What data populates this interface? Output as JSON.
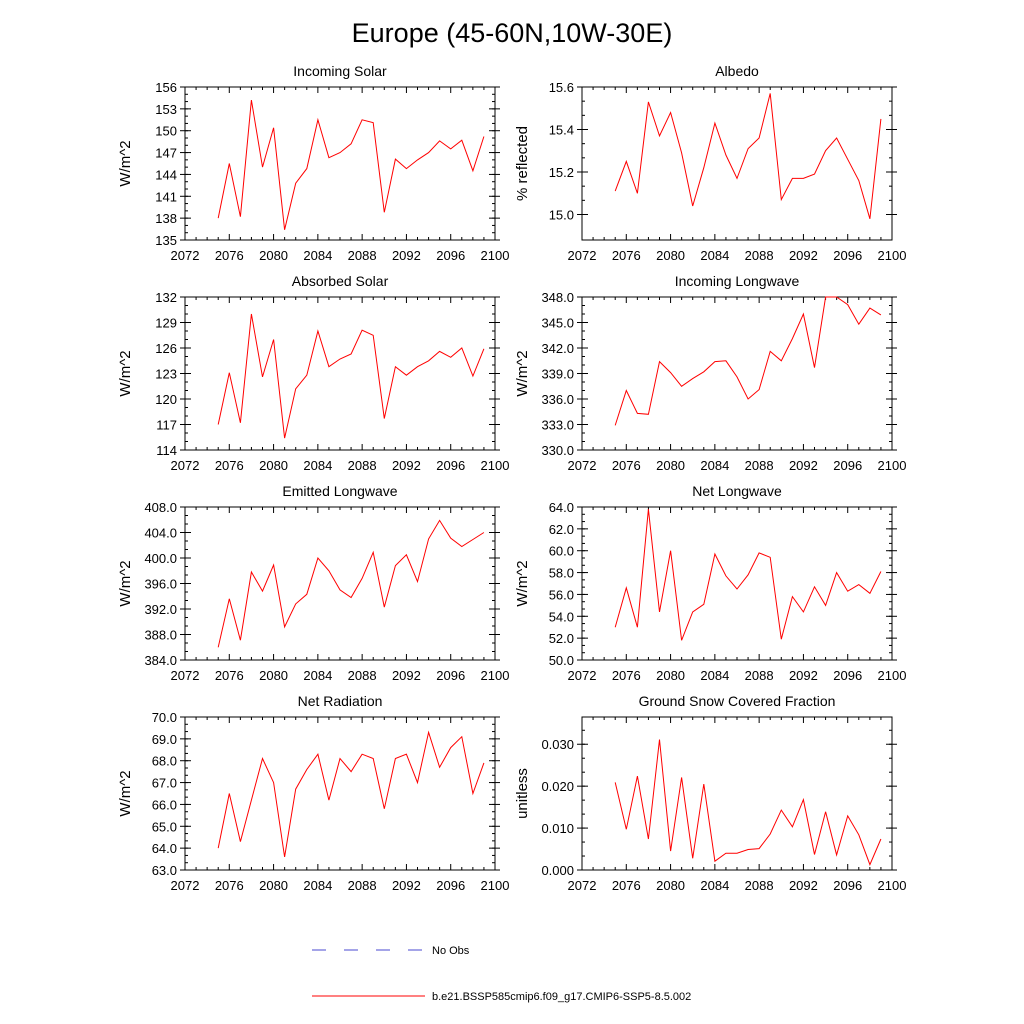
{
  "page_title": "Europe (45-60N,10W-30E)",
  "colors": {
    "series": "#ff0000",
    "obs": "#4a4ad0",
    "axis": "#000000",
    "background": "#ffffff"
  },
  "legend": [
    {
      "label": "No Obs",
      "style": "dashed",
      "color": "#4a4ad0"
    },
    {
      "label": "b.e21.BSSP585cmip6.f09_g17.CMIP6-SSP5-8.5.002",
      "style": "solid",
      "color": "#ff0000"
    }
  ],
  "chart_data": [
    {
      "type": "line",
      "title": "Incoming Solar",
      "ylabel": "W/m^2",
      "xlabel": "",
      "xlim": [
        2072,
        2100
      ],
      "ylim": [
        135,
        156
      ],
      "xticks": [
        "2072",
        "2076",
        "2080",
        "2084",
        "2088",
        "2092",
        "2096",
        "2100"
      ],
      "yticks": [
        "135",
        "138",
        "141",
        "144",
        "147",
        "150",
        "153",
        "156"
      ],
      "x": [
        2075,
        2076,
        2077,
        2078,
        2079,
        2080,
        2081,
        2082,
        2083,
        2084,
        2085,
        2086,
        2087,
        2088,
        2089,
        2090,
        2091,
        2092,
        2093,
        2094,
        2095,
        2096,
        2097,
        2098,
        2099
      ],
      "series": [
        {
          "values": [
            138.0,
            145.5,
            138.2,
            154.2,
            145.0,
            150.4,
            136.4,
            142.8,
            144.8,
            151.5,
            146.3,
            147.0,
            148.2,
            151.5,
            151.1,
            138.8,
            146.1,
            144.8,
            146.0,
            147.0,
            148.6,
            147.5,
            148.7,
            144.5,
            149.2
          ]
        }
      ]
    },
    {
      "type": "line",
      "title": "Albedo",
      "ylabel": "% reflected",
      "xlabel": "",
      "xlim": [
        2072,
        2100
      ],
      "ylim": [
        14.88,
        15.6
      ],
      "xticks": [
        "2072",
        "2076",
        "2080",
        "2084",
        "2088",
        "2092",
        "2096",
        "2100"
      ],
      "yticks": [
        "15.0",
        "15.2",
        "15.4",
        "15.6"
      ],
      "x": [
        2075,
        2076,
        2077,
        2078,
        2079,
        2080,
        2081,
        2082,
        2083,
        2084,
        2085,
        2086,
        2087,
        2088,
        2089,
        2090,
        2091,
        2092,
        2093,
        2094,
        2095,
        2096,
        2097,
        2098,
        2099
      ],
      "series": [
        {
          "values": [
            15.11,
            15.25,
            15.1,
            15.53,
            15.37,
            15.48,
            15.29,
            15.04,
            15.22,
            15.43,
            15.28,
            15.17,
            15.31,
            15.36,
            15.57,
            15.07,
            15.17,
            15.17,
            15.19,
            15.3,
            15.36,
            15.26,
            15.16,
            14.98,
            15.45
          ]
        }
      ]
    },
    {
      "type": "line",
      "title": "Absorbed Solar",
      "ylabel": "W/m^2",
      "xlabel": "",
      "xlim": [
        2072,
        2100
      ],
      "ylim": [
        114,
        132
      ],
      "xticks": [
        "2072",
        "2076",
        "2080",
        "2084",
        "2088",
        "2092",
        "2096",
        "2100"
      ],
      "yticks": [
        "114",
        "117",
        "120",
        "123",
        "126",
        "129",
        "132"
      ],
      "x": [
        2075,
        2076,
        2077,
        2078,
        2079,
        2080,
        2081,
        2082,
        2083,
        2084,
        2085,
        2086,
        2087,
        2088,
        2089,
        2090,
        2091,
        2092,
        2093,
        2094,
        2095,
        2096,
        2097,
        2098,
        2099
      ],
      "series": [
        {
          "values": [
            117.0,
            123.1,
            117.2,
            130.0,
            122.6,
            127.0,
            115.4,
            121.2,
            122.8,
            128.0,
            123.8,
            124.7,
            125.3,
            128.1,
            127.5,
            117.7,
            123.8,
            122.8,
            123.8,
            124.5,
            125.6,
            124.9,
            126.0,
            122.7,
            125.9
          ]
        }
      ]
    },
    {
      "type": "line",
      "title": "Incoming Longwave",
      "ylabel": "W/m^2",
      "xlabel": "",
      "xlim": [
        2072,
        2100
      ],
      "ylim": [
        330,
        348
      ],
      "xticks": [
        "2072",
        "2076",
        "2080",
        "2084",
        "2088",
        "2092",
        "2096",
        "2100"
      ],
      "yticks": [
        "330.0",
        "333.0",
        "336.0",
        "339.0",
        "342.0",
        "345.0",
        "348.0"
      ],
      "x": [
        2075,
        2076,
        2077,
        2078,
        2079,
        2080,
        2081,
        2082,
        2083,
        2084,
        2085,
        2086,
        2087,
        2088,
        2089,
        2090,
        2091,
        2092,
        2093,
        2094,
        2095,
        2096,
        2097,
        2098,
        2099
      ],
      "series": [
        {
          "values": [
            332.9,
            337.0,
            334.3,
            334.2,
            340.4,
            339.1,
            337.5,
            338.4,
            339.2,
            340.4,
            340.5,
            338.6,
            336.0,
            337.1,
            341.6,
            340.5,
            343.1,
            346.0,
            339.7,
            348.0,
            348.0,
            347.1,
            344.8,
            346.7,
            345.9
          ]
        }
      ]
    },
    {
      "type": "line",
      "title": "Emitted Longwave",
      "ylabel": "W/m^2",
      "xlabel": "",
      "xlim": [
        2072,
        2100
      ],
      "ylim": [
        384,
        408
      ],
      "xticks": [
        "2072",
        "2076",
        "2080",
        "2084",
        "2088",
        "2092",
        "2096",
        "2100"
      ],
      "yticks": [
        "384.0",
        "388.0",
        "392.0",
        "396.0",
        "400.0",
        "404.0",
        "408.0"
      ],
      "x": [
        2075,
        2076,
        2077,
        2078,
        2079,
        2080,
        2081,
        2082,
        2083,
        2084,
        2085,
        2086,
        2087,
        2088,
        2089,
        2090,
        2091,
        2092,
        2093,
        2094,
        2095,
        2096,
        2097,
        2098,
        2099
      ],
      "series": [
        {
          "values": [
            386.0,
            393.6,
            387.1,
            397.8,
            394.8,
            398.9,
            389.2,
            392.8,
            394.3,
            400.0,
            398.0,
            395.0,
            393.8,
            396.8,
            400.9,
            392.3,
            398.8,
            400.5,
            396.3,
            403.0,
            405.9,
            403.1,
            401.8,
            402.9,
            404.0
          ]
        }
      ]
    },
    {
      "type": "line",
      "title": "Net Longwave",
      "ylabel": "W/m^2",
      "xlabel": "",
      "xlim": [
        2072,
        2100
      ],
      "ylim": [
        50,
        64
      ],
      "xticks": [
        "2072",
        "2076",
        "2080",
        "2084",
        "2088",
        "2092",
        "2096",
        "2100"
      ],
      "yticks": [
        "50.0",
        "52.0",
        "54.0",
        "56.0",
        "58.0",
        "60.0",
        "62.0",
        "64.0"
      ],
      "x": [
        2075,
        2076,
        2077,
        2078,
        2079,
        2080,
        2081,
        2082,
        2083,
        2084,
        2085,
        2086,
        2087,
        2088,
        2089,
        2090,
        2091,
        2092,
        2093,
        2094,
        2095,
        2096,
        2097,
        2098,
        2099
      ],
      "series": [
        {
          "values": [
            53.0,
            56.6,
            53.0,
            63.8,
            54.4,
            60.0,
            51.8,
            54.4,
            55.1,
            59.7,
            57.7,
            56.5,
            57.8,
            59.8,
            59.4,
            51.9,
            55.8,
            54.4,
            56.7,
            55.0,
            58.0,
            56.3,
            56.9,
            56.1,
            58.1
          ]
        }
      ]
    },
    {
      "type": "line",
      "title": "Net Radiation",
      "ylabel": "W/m^2",
      "xlabel": "",
      "xlim": [
        2072,
        2100
      ],
      "ylim": [
        63,
        70
      ],
      "xticks": [
        "2072",
        "2076",
        "2080",
        "2084",
        "2088",
        "2092",
        "2096",
        "2100"
      ],
      "yticks": [
        "63.0",
        "64.0",
        "65.0",
        "66.0",
        "67.0",
        "68.0",
        "69.0",
        "70.0"
      ],
      "x": [
        2075,
        2076,
        2077,
        2078,
        2079,
        2080,
        2081,
        2082,
        2083,
        2084,
        2085,
        2086,
        2087,
        2088,
        2089,
        2090,
        2091,
        2092,
        2093,
        2094,
        2095,
        2096,
        2097,
        2098,
        2099
      ],
      "series": [
        {
          "values": [
            64.0,
            66.5,
            64.3,
            66.2,
            68.1,
            67.0,
            63.6,
            66.7,
            67.6,
            68.3,
            66.2,
            68.1,
            67.5,
            68.3,
            68.1,
            65.8,
            68.1,
            68.3,
            67.0,
            69.3,
            67.7,
            68.6,
            69.1,
            66.5,
            67.9
          ]
        }
      ]
    },
    {
      "type": "line",
      "title": "Ground Snow Covered Fraction",
      "ylabel": "unitless",
      "xlabel": "",
      "xlim": [
        2072,
        2100
      ],
      "ylim": [
        0,
        0.0365
      ],
      "xticks": [
        "2072",
        "2076",
        "2080",
        "2084",
        "2088",
        "2092",
        "2096",
        "2100"
      ],
      "yticks": [
        "0.000",
        "0.010",
        "0.020",
        "0.030"
      ],
      "x": [
        2075,
        2076,
        2077,
        2078,
        2079,
        2080,
        2081,
        2082,
        2083,
        2084,
        2085,
        2086,
        2087,
        2088,
        2089,
        2090,
        2091,
        2092,
        2093,
        2094,
        2095,
        2096,
        2097,
        2098,
        2099
      ],
      "series": [
        {
          "values": [
            0.0209,
            0.0097,
            0.0224,
            0.0074,
            0.0311,
            0.0045,
            0.0221,
            0.0028,
            0.0205,
            0.0021,
            0.004,
            0.004,
            0.0049,
            0.0051,
            0.0086,
            0.0143,
            0.0103,
            0.0168,
            0.0037,
            0.0139,
            0.0036,
            0.0129,
            0.0084,
            0.0013,
            0.0074
          ]
        }
      ]
    }
  ]
}
